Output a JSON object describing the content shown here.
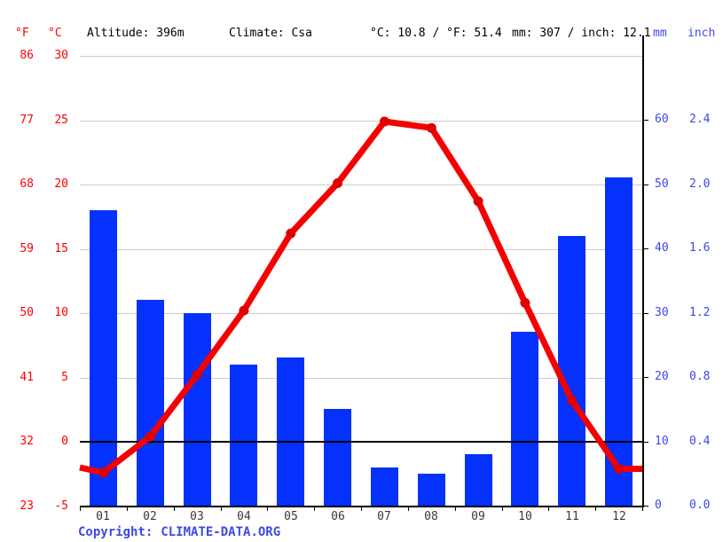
{
  "header": {
    "f_unit": "°F",
    "c_unit": "°C",
    "altitude": "Altitude: 396m",
    "climate": "Climate: Csa",
    "temp_summary": "°C: 10.8 / °F: 51.4",
    "precip_summary": "mm: 307 / inch: 12.1",
    "mm_unit": "mm",
    "inch_unit": "inch"
  },
  "footer": {
    "copyright_label": "Copyright:",
    "copyright_link": "CLIMATE-DATA.ORG"
  },
  "colors": {
    "bar_blue": "#0431fc",
    "line_red": "#f50000",
    "marker_red": "#df0000",
    "red_text": "#ff0000",
    "blue_text": "#3d49e6",
    "gridline_gray": "#cccccc",
    "axis_black": "#000000",
    "month_text": "#3a3a3a"
  },
  "chart_data": {
    "type": "climograph (bar + line combo)",
    "categories": [
      "01",
      "02",
      "03",
      "04",
      "05",
      "06",
      "07",
      "08",
      "09",
      "10",
      "11",
      "12"
    ],
    "series": [
      {
        "name": "precipitation",
        "type": "bar",
        "unit": "mm",
        "values": [
          46,
          32,
          30,
          22,
          23,
          15,
          6,
          5,
          8,
          27,
          42,
          51
        ],
        "total_mm": 307
      },
      {
        "name": "temperature",
        "type": "line",
        "unit": "°C",
        "values": [
          -2.4,
          0.4,
          5.2,
          10.2,
          16.2,
          20.1,
          24.9,
          24.4,
          18.7,
          10.8,
          3.2,
          -2.1
        ],
        "edge_left": -2.0,
        "edge_right": -2.1,
        "annual_mean_c": 10.8
      }
    ],
    "left_axis": {
      "f_ticks": [
        "86",
        "77",
        "68",
        "59",
        "50",
        "41",
        "32",
        "23"
      ],
      "c_ticks": [
        "30",
        "25",
        "20",
        "15",
        "10",
        "5",
        "0",
        "-5"
      ],
      "range_c": [
        -5,
        30
      ]
    },
    "right_axis": {
      "mm_ticks": [
        "60",
        "50",
        "40",
        "30",
        "20",
        "10",
        "0"
      ],
      "inch_ticks": [
        "2.4",
        "2.0",
        "1.6",
        "1.2",
        "0.8",
        "0.4",
        "0.0"
      ],
      "range_mm": [
        0,
        70
      ]
    },
    "grid": true,
    "legend": "none"
  }
}
